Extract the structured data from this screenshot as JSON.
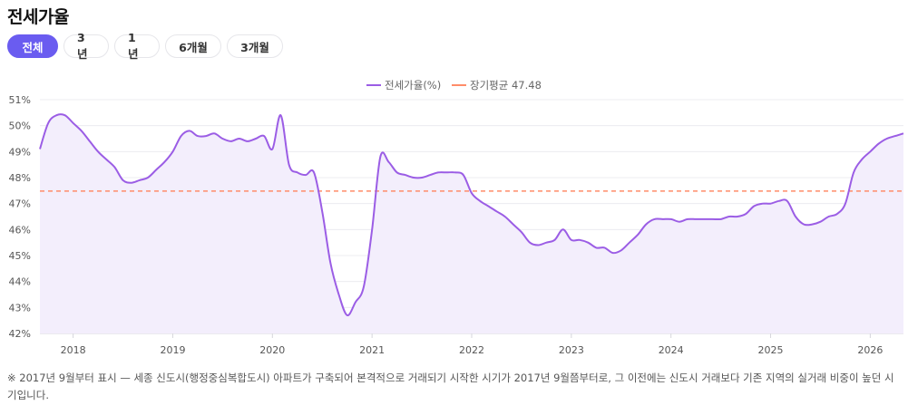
{
  "page": {
    "title": "전세가율"
  },
  "tabs": [
    {
      "label": "전체",
      "active": true
    },
    {
      "label": "3년",
      "active": false
    },
    {
      "label": "1년",
      "active": false
    },
    {
      "label": "6개월",
      "active": false
    },
    {
      "label": "3개월",
      "active": false
    }
  ],
  "note": "※ 2017년 9월부터 표시 — 세종 신도시(행정중심복합도시) 아파트가 구축되어 본격적으로 거래되기 시작한 시기가 2017년 9월쯤부터로, 그 이전에는 신도시 거래보다 기존 지역의 실거래 비중이 높던 시기입니다.",
  "colors": {
    "line": "#9b5de5",
    "area": "#f3eefc",
    "avg": "#ff8c69",
    "accent": "#6a5cf0"
  },
  "chart_data": {
    "type": "line",
    "legend": [
      "전세가율(%)",
      "장기평균 47.48"
    ],
    "legend_position": "top-center",
    "grid": true,
    "ylim": [
      42,
      51
    ],
    "yticks": [
      42,
      43,
      44,
      45,
      46,
      47,
      48,
      49,
      50,
      51
    ],
    "ytick_labels": [
      "42%",
      "43%",
      "44%",
      "45%",
      "46%",
      "47%",
      "48%",
      "49%",
      "50%",
      "51%"
    ],
    "xlim": [
      "2017-09",
      "2026-05"
    ],
    "xticks": [
      "2018",
      "2019",
      "2020",
      "2021",
      "2022",
      "2023",
      "2024",
      "2025",
      "2026"
    ],
    "average": {
      "label": "장기평균 47.48",
      "value": 47.48
    },
    "series": [
      {
        "name": "전세가율(%)",
        "points": [
          [
            "2017-09",
            49.1
          ],
          [
            "2017-10",
            50.1
          ],
          [
            "2017-11",
            50.4
          ],
          [
            "2017-12",
            50.4
          ],
          [
            "2018-01",
            50.1
          ],
          [
            "2018-02",
            49.8
          ],
          [
            "2018-03",
            49.4
          ],
          [
            "2018-04",
            49.0
          ],
          [
            "2018-05",
            48.7
          ],
          [
            "2018-06",
            48.4
          ],
          [
            "2018-07",
            47.9
          ],
          [
            "2018-08",
            47.8
          ],
          [
            "2018-09",
            47.9
          ],
          [
            "2018-10",
            48.0
          ],
          [
            "2018-11",
            48.3
          ],
          [
            "2018-12",
            48.6
          ],
          [
            "2019-01",
            49.0
          ],
          [
            "2019-02",
            49.6
          ],
          [
            "2019-03",
            49.8
          ],
          [
            "2019-04",
            49.6
          ],
          [
            "2019-05",
            49.6
          ],
          [
            "2019-06",
            49.7
          ],
          [
            "2019-07",
            49.5
          ],
          [
            "2019-08",
            49.4
          ],
          [
            "2019-09",
            49.5
          ],
          [
            "2019-10",
            49.4
          ],
          [
            "2019-11",
            49.5
          ],
          [
            "2019-12",
            49.6
          ],
          [
            "2020-01",
            49.1
          ],
          [
            "2020-02",
            50.4
          ],
          [
            "2020-03",
            48.5
          ],
          [
            "2020-04",
            48.2
          ],
          [
            "2020-05",
            48.1
          ],
          [
            "2020-06",
            48.2
          ],
          [
            "2020-07",
            46.7
          ],
          [
            "2020-08",
            44.7
          ],
          [
            "2020-09",
            43.5
          ],
          [
            "2020-10",
            42.7
          ],
          [
            "2020-11",
            43.2
          ],
          [
            "2020-12",
            43.8
          ],
          [
            "2021-01",
            46.0
          ],
          [
            "2021-02",
            48.8
          ],
          [
            "2021-03",
            48.6
          ],
          [
            "2021-04",
            48.2
          ],
          [
            "2021-05",
            48.1
          ],
          [
            "2021-06",
            48.0
          ],
          [
            "2021-07",
            48.0
          ],
          [
            "2021-08",
            48.1
          ],
          [
            "2021-09",
            48.2
          ],
          [
            "2021-10",
            48.2
          ],
          [
            "2021-11",
            48.2
          ],
          [
            "2021-12",
            48.1
          ],
          [
            "2022-01",
            47.4
          ],
          [
            "2022-02",
            47.1
          ],
          [
            "2022-03",
            46.9
          ],
          [
            "2022-04",
            46.7
          ],
          [
            "2022-05",
            46.5
          ],
          [
            "2022-06",
            46.2
          ],
          [
            "2022-07",
            45.9
          ],
          [
            "2022-08",
            45.5
          ],
          [
            "2022-09",
            45.4
          ],
          [
            "2022-10",
            45.5
          ],
          [
            "2022-11",
            45.6
          ],
          [
            "2022-12",
            46.0
          ],
          [
            "2023-01",
            45.6
          ],
          [
            "2023-02",
            45.6
          ],
          [
            "2023-03",
            45.5
          ],
          [
            "2023-04",
            45.3
          ],
          [
            "2023-05",
            45.3
          ],
          [
            "2023-06",
            45.1
          ],
          [
            "2023-07",
            45.2
          ],
          [
            "2023-08",
            45.5
          ],
          [
            "2023-09",
            45.8
          ],
          [
            "2023-10",
            46.2
          ],
          [
            "2023-11",
            46.4
          ],
          [
            "2023-12",
            46.4
          ],
          [
            "2024-01",
            46.4
          ],
          [
            "2024-02",
            46.3
          ],
          [
            "2024-03",
            46.4
          ],
          [
            "2024-04",
            46.4
          ],
          [
            "2024-05",
            46.4
          ],
          [
            "2024-06",
            46.4
          ],
          [
            "2024-07",
            46.4
          ],
          [
            "2024-08",
            46.5
          ],
          [
            "2024-09",
            46.5
          ],
          [
            "2024-10",
            46.6
          ],
          [
            "2024-11",
            46.9
          ],
          [
            "2024-12",
            47.0
          ],
          [
            "2025-01",
            47.0
          ],
          [
            "2025-02",
            47.1
          ],
          [
            "2025-03",
            47.1
          ],
          [
            "2025-04",
            46.5
          ],
          [
            "2025-05",
            46.2
          ],
          [
            "2025-06",
            46.2
          ],
          [
            "2025-07",
            46.3
          ],
          [
            "2025-08",
            46.5
          ],
          [
            "2025-09",
            46.6
          ],
          [
            "2025-10",
            47.0
          ],
          [
            "2025-11",
            48.2
          ],
          [
            "2025-12",
            48.7
          ],
          [
            "2026-01",
            49.0
          ],
          [
            "2026-02",
            49.3
          ],
          [
            "2026-03",
            49.5
          ],
          [
            "2026-04",
            49.6
          ],
          [
            "2026-05",
            49.7
          ]
        ]
      }
    ]
  }
}
